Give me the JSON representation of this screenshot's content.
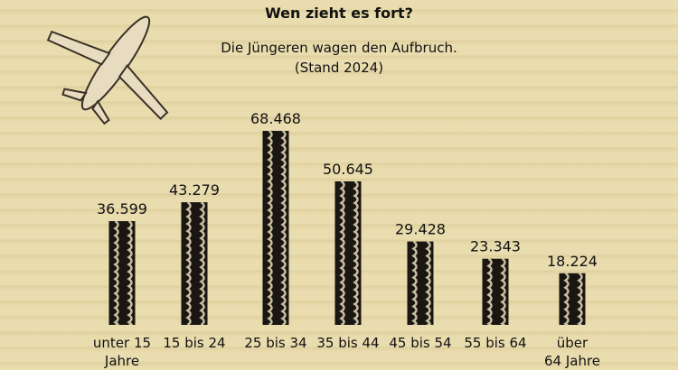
{
  "title": "Wen zieht es fort?",
  "subtitle": [
    "Die Jüngeren wagen den Aufbruch.",
    "(Stand 2024)"
  ],
  "icon": "airplane-icon",
  "colors": {
    "bar": "#1a1612",
    "bar_pattern": "#e8dcb8",
    "text": "#111111"
  },
  "chart_data": {
    "type": "bar",
    "categories": [
      [
        "unter 15",
        "Jahre"
      ],
      [
        "15 bis 24"
      ],
      [
        "25 bis 34"
      ],
      [
        "35 bis 44"
      ],
      [
        "45 bis 54"
      ],
      [
        "55 bis 64"
      ],
      [
        "über",
        "64 Jahre"
      ]
    ],
    "values": [
      36599,
      43279,
      68468,
      50645,
      29428,
      23343,
      18224
    ],
    "value_labels": [
      "36.599",
      "43.279",
      "68.468",
      "50.645",
      "29.428",
      "23.343",
      "18.224"
    ],
    "ylim": [
      0,
      70000
    ],
    "grid": false
  }
}
